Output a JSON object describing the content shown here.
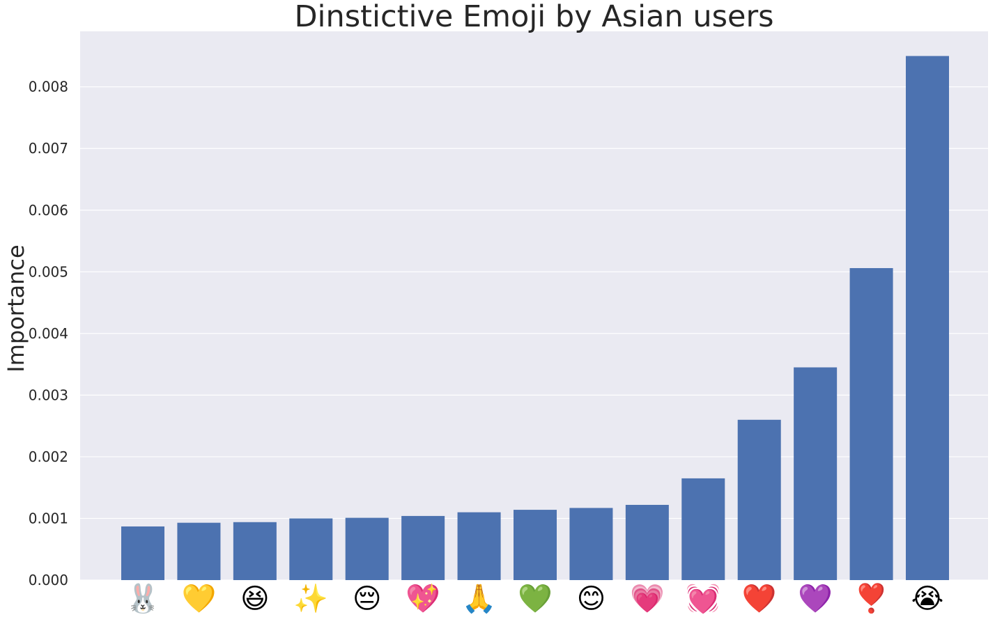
{
  "chart_data": {
    "type": "bar",
    "title": "Dinstictive Emoji by Asian users",
    "xlabel": "",
    "ylabel": "Importance",
    "categories": [
      "🐰",
      "💛",
      "😆",
      "✨",
      "😔",
      "💖",
      "🙏",
      "💚",
      "😊",
      "💗",
      "💓",
      "❤️",
      "💜",
      "❣️",
      "😭"
    ],
    "values": [
      0.00087,
      0.00093,
      0.00094,
      0.001,
      0.00101,
      0.00104,
      0.0011,
      0.00114,
      0.00117,
      0.00122,
      0.00165,
      0.0026,
      0.00345,
      0.00506,
      0.0085
    ],
    "ylim": [
      0,
      0.0089
    ],
    "yticks": [
      "0.000",
      "0.001",
      "0.002",
      "0.003",
      "0.004",
      "0.005",
      "0.006",
      "0.007",
      "0.008"
    ],
    "grid": true,
    "colors": {
      "bar": "#4c72b0",
      "background": "#eaeaf2",
      "grid": "#ffffff",
      "text": "#262626"
    }
  }
}
